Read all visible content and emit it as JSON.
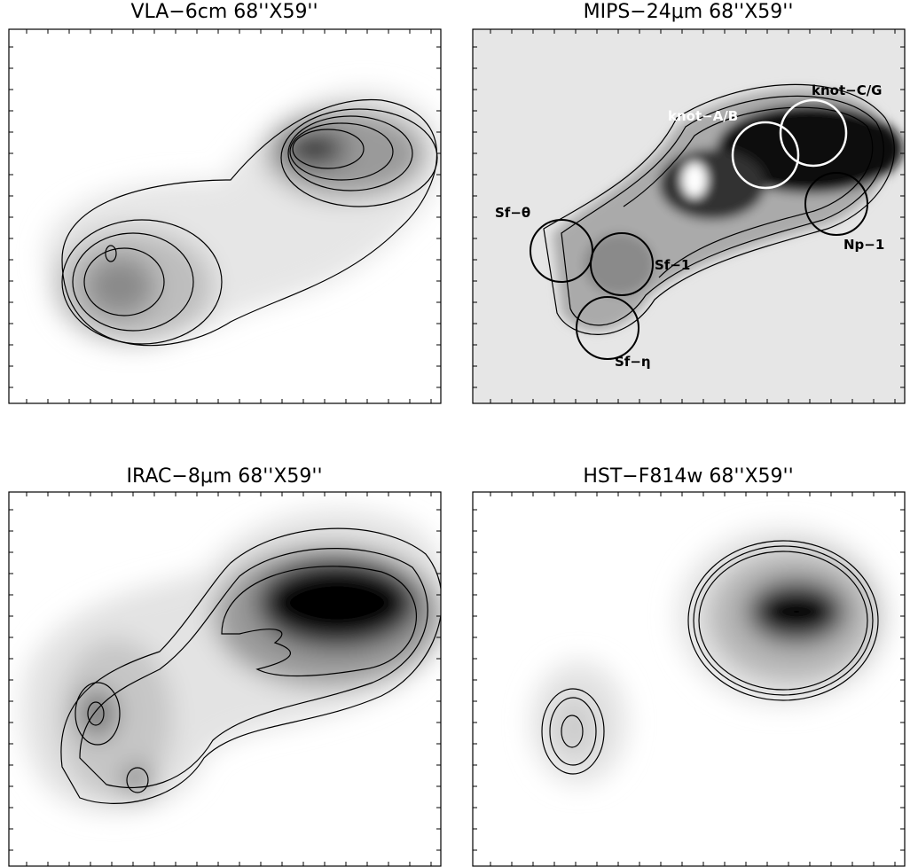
{
  "panels": [
    {
      "title": "VLA−6cm 68''X59''"
    },
    {
      "title": "MIPS−24μm 68''X59''",
      "labels": [
        "knot−C/G",
        "knot−A/B",
        "Sf−θ",
        "Sf−1",
        "Np−1",
        "Sf−η"
      ]
    },
    {
      "title": "IRAC−8μm 68''X59''"
    },
    {
      "title": "HST−F814w 68''X59''"
    }
  ]
}
